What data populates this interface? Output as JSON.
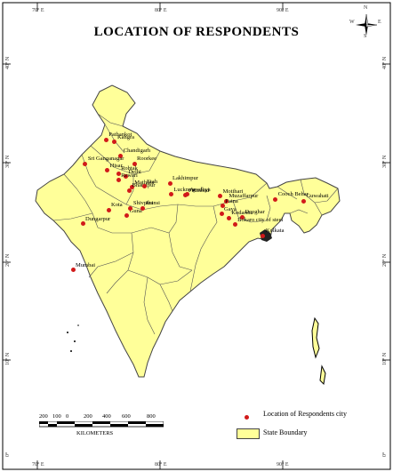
{
  "title": "LOCATION OF RESPONDENTS",
  "colors": {
    "land": "#ffff99",
    "border": "#555555",
    "dot": "#d11a1a"
  },
  "graticule": {
    "top": [
      "70° E",
      "80° E",
      "90° E"
    ],
    "bottom": [
      "70° E",
      "80° E",
      "90° E"
    ],
    "left": [
      "40° N",
      "30° N",
      "20° N",
      "10° N",
      "0°"
    ],
    "right": [
      "40° N",
      "30° N",
      "20° N",
      "10° N",
      "0°"
    ]
  },
  "compass": {
    "n": "N",
    "s": "S",
    "e": "E",
    "w": "W"
  },
  "cities": [
    {
      "name": "Pathankot",
      "lon": 75.6,
      "lat": 32.3
    },
    {
      "name": "Kangra",
      "lon": 76.3,
      "lat": 32.1
    },
    {
      "name": "Chandigarh",
      "lon": 76.8,
      "lat": 30.7
    },
    {
      "name": "Roorkee",
      "lon": 77.9,
      "lat": 29.9
    },
    {
      "name": "Sri Ganganagar",
      "lon": 73.9,
      "lat": 29.9
    },
    {
      "name": "Hisar",
      "lon": 75.7,
      "lat": 29.2
    },
    {
      "name": "Delhi",
      "lon": 77.2,
      "lat": 28.6
    },
    {
      "name": "Rohtak",
      "lon": 76.6,
      "lat": 28.9
    },
    {
      "name": "Rewari",
      "lon": 76.6,
      "lat": 28.2
    },
    {
      "name": "Mathura",
      "lon": 77.7,
      "lat": 27.5
    },
    {
      "name": "Bharatpur",
      "lon": 77.5,
      "lat": 27.2
    },
    {
      "name": "Etah",
      "lon": 78.7,
      "lat": 27.6
    },
    {
      "name": "Lakhimpur",
      "lon": 80.8,
      "lat": 27.9
    },
    {
      "name": "Lucknow",
      "lon": 80.9,
      "lat": 26.8
    },
    {
      "name": "Ayodhya",
      "lon": 82.2,
      "lat": 26.8
    },
    {
      "name": "Faizabad",
      "lon": 82.1,
      "lat": 26.7
    },
    {
      "name": "Motihari",
      "lon": 84.9,
      "lat": 26.6
    },
    {
      "name": "Muzaffarpur",
      "lon": 85.4,
      "lat": 26.1
    },
    {
      "name": "Patna",
      "lon": 85.1,
      "lat": 25.6
    },
    {
      "name": "Cooch Behar",
      "lon": 89.4,
      "lat": 26.3
    },
    {
      "name": "Guwahati",
      "lon": 91.7,
      "lat": 26.1
    },
    {
      "name": "Kota",
      "lon": 75.8,
      "lat": 25.2
    },
    {
      "name": "Guna",
      "lon": 77.3,
      "lat": 24.6
    },
    {
      "name": "Shivpuri",
      "lon": 77.6,
      "lat": 25.4
    },
    {
      "name": "Jhansi",
      "lon": 78.6,
      "lat": 25.4
    },
    {
      "name": "Gaya",
      "lon": 85.0,
      "lat": 24.8
    },
    {
      "name": "Kodarma",
      "lon": 85.6,
      "lat": 24.4
    },
    {
      "name": "Deoghar",
      "lon": 86.7,
      "lat": 24.5
    },
    {
      "name": "Bokaro city of steel",
      "lon": 86.1,
      "lat": 23.7
    },
    {
      "name": "Kolkata",
      "lon": 88.4,
      "lat": 22.6
    },
    {
      "name": "Dungarpur",
      "lon": 73.7,
      "lat": 23.8
    },
    {
      "name": "Mumbai",
      "lon": 72.9,
      "lat": 19.1
    }
  ],
  "scale": {
    "ticks": [
      "200",
      "100",
      "0",
      "200",
      "400",
      "600",
      "800"
    ],
    "unit": "KILOMETERS"
  },
  "legend": {
    "location_label": "Location of Respondents city",
    "boundary_label": "State Boundary"
  }
}
